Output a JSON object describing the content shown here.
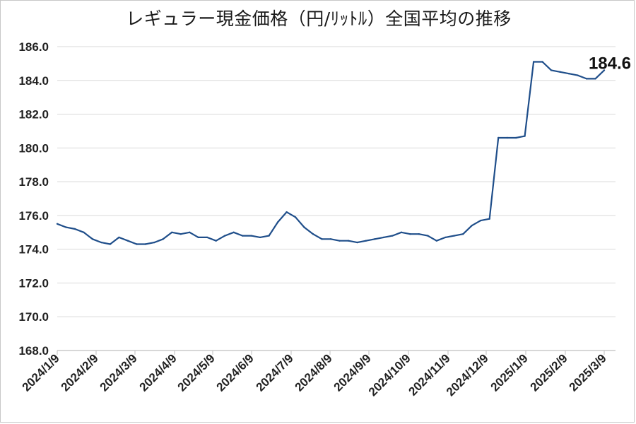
{
  "chart_data": {
    "type": "line",
    "title": "レギュラー現金価格（円/ﾘｯﾄﾙ）全国平均の推移",
    "ylim": [
      168.0,
      186.0
    ],
    "y_ticks": [
      "168.0",
      "170.0",
      "172.0",
      "174.0",
      "176.0",
      "178.0",
      "180.0",
      "182.0",
      "184.0",
      "186.0"
    ],
    "x_ticks": [
      "2024/1/9",
      "2024/2/9",
      "2024/3/9",
      "2024/4/9",
      "2024/5/9",
      "2024/6/9",
      "2024/7/9",
      "2024/8/9",
      "2024/9/9",
      "2024/10/9",
      "2024/11/9",
      "2024/12/9",
      "2025/1/9",
      "2025/2/9",
      "2025/3/9"
    ],
    "grid": "horizontal",
    "line_color": "#1f4e8a",
    "series": [
      {
        "values": [
          175.5,
          175.3,
          175.2,
          175.0,
          174.6,
          174.4,
          174.3,
          174.7,
          174.5,
          174.3,
          174.3,
          174.4,
          174.6,
          175.0,
          174.9,
          175.0,
          174.7,
          174.7,
          174.5,
          174.8,
          175.0,
          174.8,
          174.8,
          174.7,
          174.8,
          175.6,
          176.2,
          175.9,
          175.3,
          174.9,
          174.6,
          174.6,
          174.5,
          174.5,
          174.4,
          174.5,
          174.6,
          174.7,
          174.8,
          175.0,
          174.9,
          174.9,
          174.8,
          174.5,
          174.7,
          174.8,
          174.9,
          175.4,
          175.7,
          175.8,
          180.6,
          180.6,
          180.6,
          180.7,
          185.1,
          185.1,
          184.6,
          184.5,
          184.4,
          184.3,
          184.1,
          184.1,
          184.6
        ]
      }
    ],
    "annotation": "184.6"
  }
}
